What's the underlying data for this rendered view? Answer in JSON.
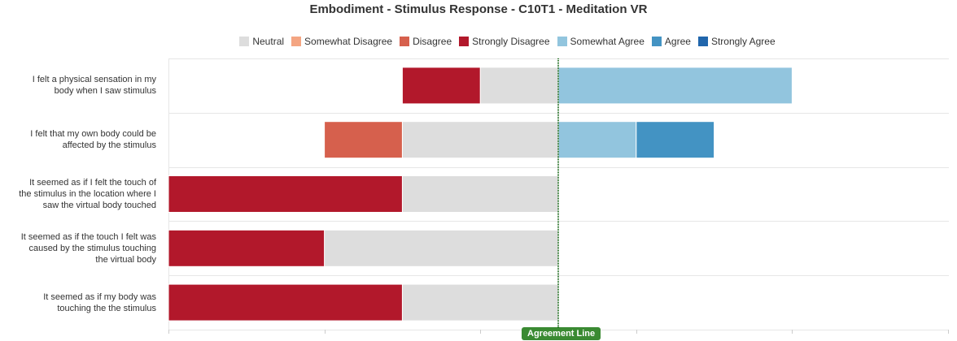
{
  "chart_data": {
    "type": "bar",
    "orientation": "horizontal",
    "stacked": "diverging",
    "title": "Embodiment - Stimulus Response - C10T1 - Meditation VR",
    "categories": [
      "I felt a physical sensation in my body when I saw stimulus",
      "I felt that my own body could be affected by the stimulus",
      "It seemed as if I felt the touch of the stimulus in the location where I saw the virtual body touched",
      "It seemed as if the touch I felt was caused by the stimulus touching the virtual body",
      "It seemed as if my body was touching the the stimulus"
    ],
    "series": [
      {
        "name": "Neutral",
        "color": "#dddddd",
        "values": [
          1,
          2,
          2,
          3,
          2
        ]
      },
      {
        "name": "Somewhat Disagree",
        "color": "#f4a582",
        "values": [
          0,
          0,
          0,
          0,
          0
        ]
      },
      {
        "name": "Disagree",
        "color": "#d6604d",
        "values": [
          0,
          1,
          0,
          0,
          0
        ]
      },
      {
        "name": "Strongly Disagree",
        "color": "#b2182b",
        "values": [
          1,
          0,
          3,
          2,
          3
        ]
      },
      {
        "name": "Somewhat Agree",
        "color": "#92c5de",
        "values": [
          3,
          1,
          0,
          0,
          0
        ]
      },
      {
        "name": "Agree",
        "color": "#4393c3",
        "values": [
          0,
          1,
          0,
          0,
          0
        ]
      },
      {
        "name": "Strongly Agree",
        "color": "#2166ac",
        "values": [
          0,
          0,
          0,
          0,
          0
        ]
      }
    ],
    "xlim": [
      -5,
      5
    ],
    "agreement_line": {
      "value": 0,
      "label": "Agreement Line",
      "color": "#3a8a32"
    },
    "legend_position": "top",
    "grid": true
  }
}
